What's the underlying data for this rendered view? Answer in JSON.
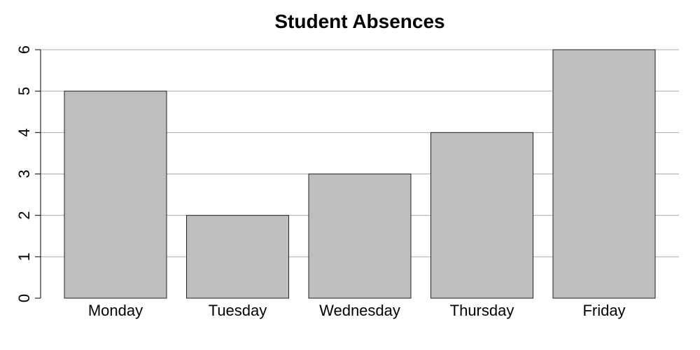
{
  "chart_data": {
    "type": "bar",
    "title": "Student Absences",
    "xlabel": "",
    "ylabel": "",
    "categories": [
      "Monday",
      "Tuesday",
      "Wednesday",
      "Thursday",
      "Friday"
    ],
    "values": [
      5,
      2,
      3,
      4,
      6
    ],
    "ylim": [
      0,
      6
    ],
    "yticks": [
      "0",
      "1",
      "2",
      "3",
      "4",
      "5",
      "6"
    ],
    "grid": true,
    "bar_color": "#bebebe",
    "grid_color": "#aaaaaa"
  }
}
